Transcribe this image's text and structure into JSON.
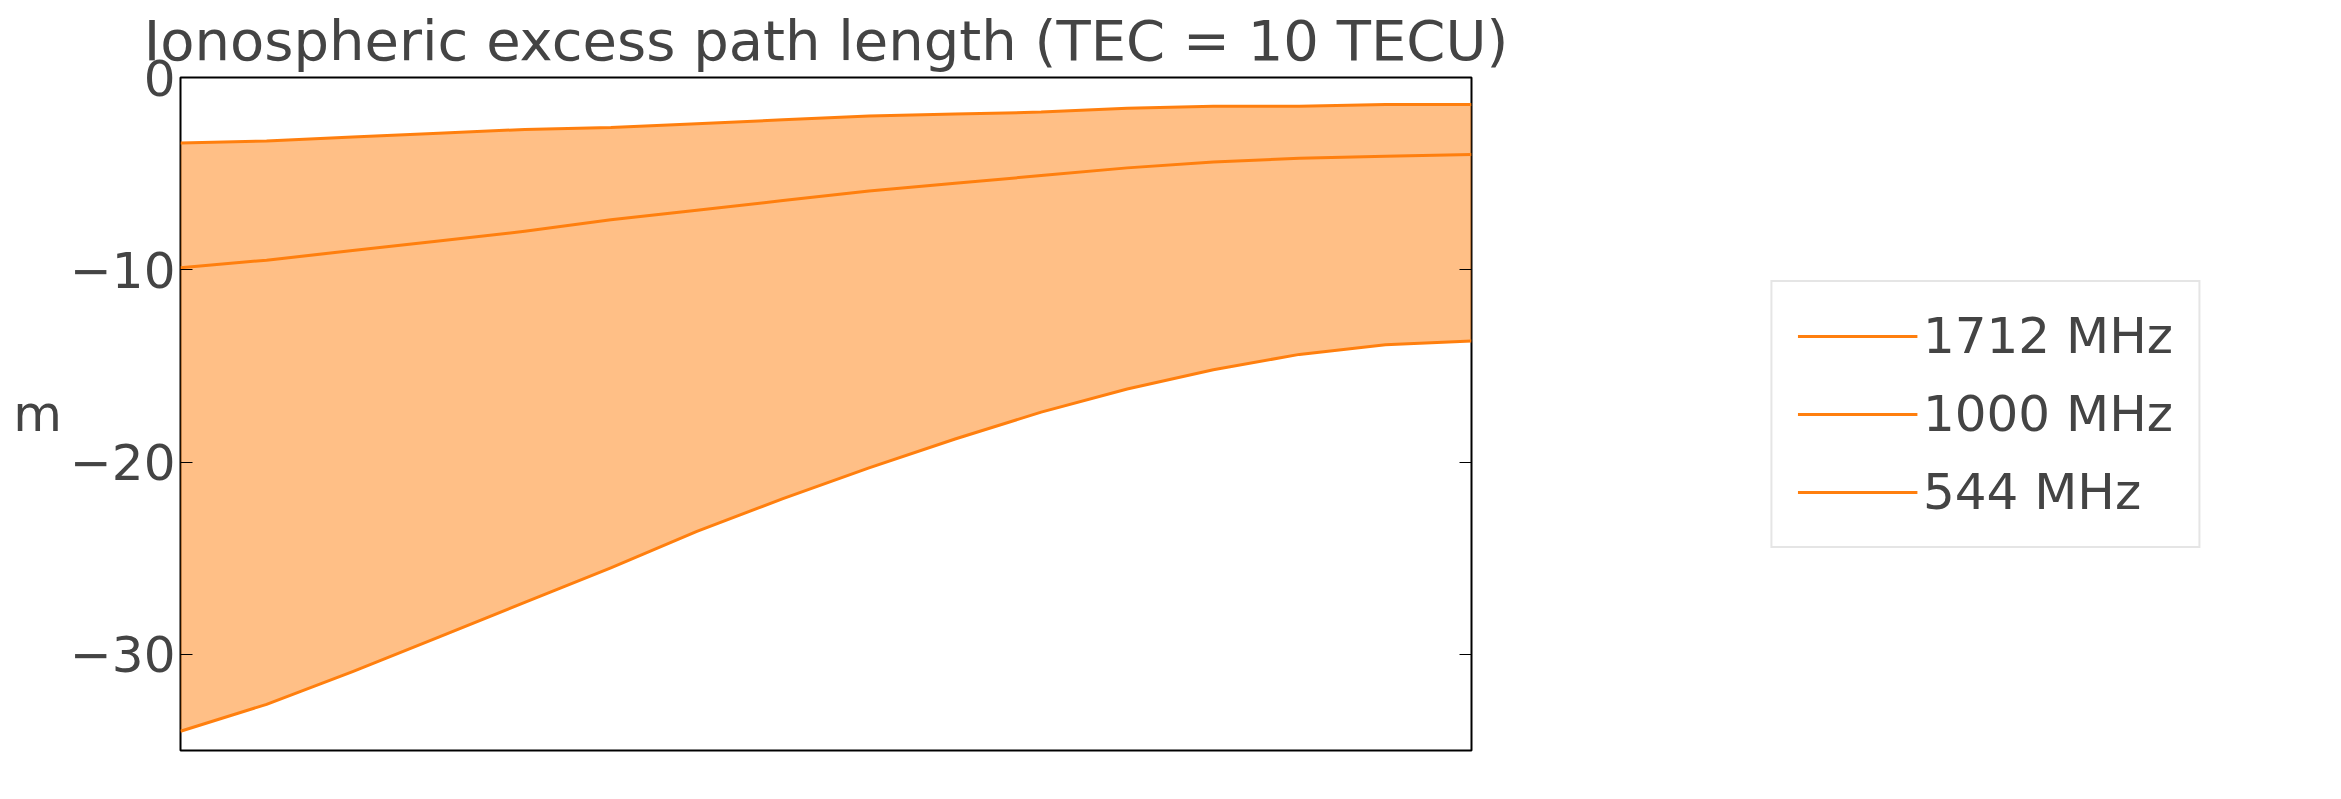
{
  "chart_data": {
    "type": "line",
    "title": "Ionospheric excess path length (TEC = 10 TECU)",
    "ylabel": "m",
    "categories": [
      null,
      null,
      null,
      null,
      null,
      null,
      null,
      null,
      null,
      null,
      null,
      null,
      null,
      null,
      null,
      null
    ],
    "series": [
      {
        "name": "1712 MHz",
        "color": "#ff7f0e",
        "values": [
          -3.4,
          -3.3,
          -3.1,
          -2.9,
          -2.7,
          -2.6,
          -2.4,
          -2.2,
          -2.0,
          -1.9,
          -1.8,
          -1.6,
          -1.5,
          -1.5,
          -1.4,
          -1.4
        ]
      },
      {
        "name": "1000 MHz",
        "color": "#ff7f0e",
        "values": [
          -9.9,
          -9.5,
          -9.0,
          -8.5,
          -8.0,
          -7.4,
          -6.9,
          -6.4,
          -5.9,
          -5.5,
          -5.1,
          -4.7,
          -4.4,
          -4.2,
          -4.1,
          -4.0
        ],
        "lower": [
          -34.0,
          -32.6,
          -30.9,
          -29.1,
          -27.3,
          -25.5,
          -23.6,
          -21.9,
          -20.3,
          -18.8,
          -17.4,
          -16.2,
          -15.2,
          -14.4,
          -13.9,
          -13.7
        ],
        "upper": [
          -3.4,
          -3.3,
          -3.1,
          -2.9,
          -2.7,
          -2.6,
          -2.4,
          -2.2,
          -2.0,
          -1.9,
          -1.8,
          -1.6,
          -1.5,
          -1.5,
          -1.4,
          -1.4
        ]
      },
      {
        "name": "544 MHz",
        "color": "#ff7f0e",
        "values": [
          -34.0,
          -32.6,
          -30.9,
          -29.1,
          -27.3,
          -25.5,
          -23.6,
          -21.9,
          -20.3,
          -18.8,
          -17.4,
          -16.2,
          -15.2,
          -14.4,
          -13.9,
          -13.7
        ]
      }
    ],
    "ylim": [
      -35,
      0
    ],
    "yticks": [
      0,
      {
        "value": -10,
        "label": "−10"
      },
      {
        "value": -20,
        "label": "−20"
      },
      {
        "value": -30,
        "label": "−30"
      }
    ],
    "tick_labels": "y",
    "grid": false,
    "legend": "right",
    "marker": "none",
    "line_style": "solid"
  }
}
